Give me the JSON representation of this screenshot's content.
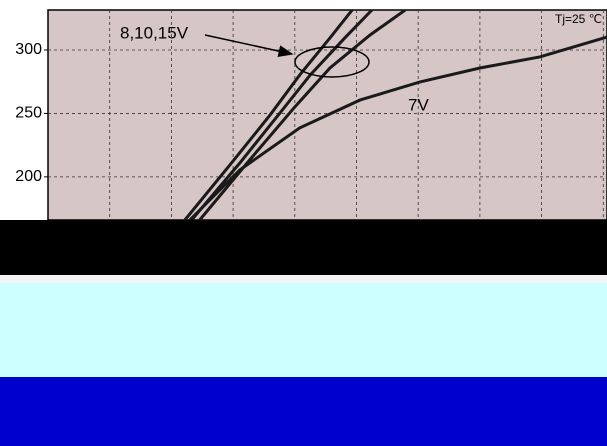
{
  "chart_data": {
    "type": "line",
    "annotations": [
      "8,10,15V",
      "7V",
      "Tj=25 ℃"
    ],
    "xlim": [
      0,
      9.06
    ],
    "ylim": [
      166,
      331.5
    ],
    "yticks": [
      200,
      250,
      300
    ],
    "grid": true,
    "series": [
      {
        "color": "#1a1a1a",
        "x": [
          2.22,
          2.95,
          3.6,
          4.08,
          4.57,
          4.93
        ],
        "values": [
          166.1,
          209.5,
          248.8,
          280.3,
          309.5,
          331.5
        ]
      },
      {
        "color": "#1a1a1a",
        "x": [
          2.33,
          3.11,
          3.76,
          4.25,
          4.81,
          5.25
        ],
        "values": [
          166.1,
          211.0,
          250.4,
          280.3,
          309.5,
          331.5
        ]
      },
      {
        "color": "#1a1a1a",
        "x": [
          2.46,
          3.27,
          4.0,
          4.57,
          5.22,
          5.79
        ],
        "values": [
          166.1,
          213.4,
          255.1,
          285.8,
          311.8,
          331.5
        ]
      },
      {
        "color": "#1a1a1a",
        "x": [
          2.3,
          3.11,
          4.08,
          5.06,
          6.03,
          7.0,
          7.97,
          9.06
        ],
        "values": [
          166.1,
          205.5,
          238.6,
          260.6,
          274.8,
          285.8,
          294.5,
          310.2
        ]
      }
    ]
  }
}
